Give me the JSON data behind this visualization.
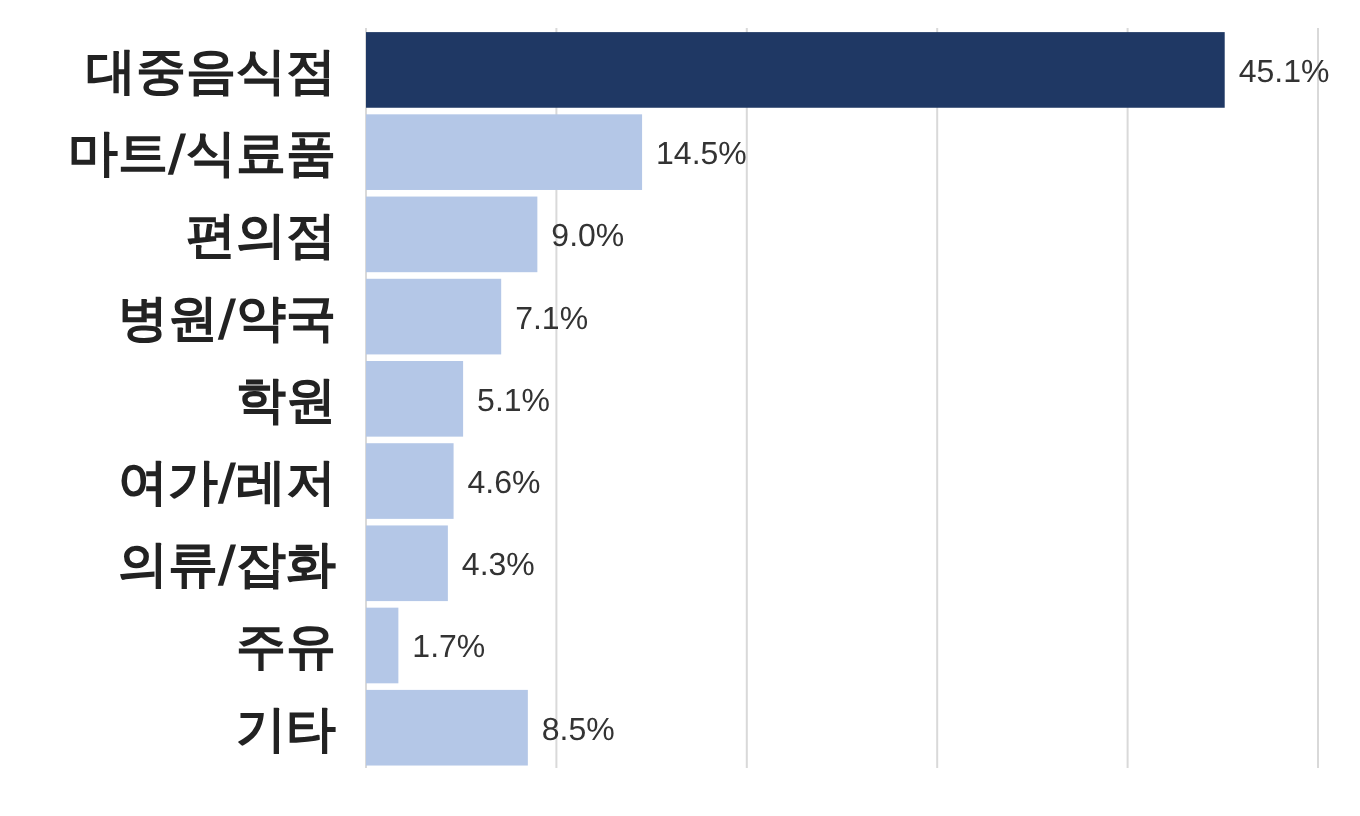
{
  "chart_data": {
    "type": "bar",
    "orientation": "horizontal",
    "categories": [
      "대중음식점",
      "마트/식료품",
      "편의점",
      "병원/약국",
      "학원",
      "여가/레저",
      "의류/잡화",
      "주유",
      "기타"
    ],
    "values": [
      45.1,
      14.5,
      9.0,
      7.1,
      5.1,
      4.6,
      4.3,
      1.7,
      8.5
    ],
    "colors": [
      "#1f3864",
      "#b4c7e7",
      "#b4c7e7",
      "#b4c7e7",
      "#b4c7e7",
      "#b4c7e7",
      "#b4c7e7",
      "#b4c7e7",
      "#b4c7e7"
    ],
    "value_labels": [
      "45.1%",
      "14.5%",
      "9.0%",
      "7.1%",
      "5.1%",
      "4.6%",
      "4.3%",
      "1.7%",
      "8.5%"
    ],
    "xlim": [
      0,
      50
    ],
    "xticks": [
      {
        "value": 0,
        "label": null
      },
      {
        "value": 10,
        "label": null
      },
      {
        "value": 20,
        "label": null
      },
      {
        "value": 30,
        "label": null
      },
      {
        "value": 40,
        "label": null
      },
      {
        "value": 50,
        "label": null
      }
    ],
    "grid": "x",
    "tick_labels": "y"
  }
}
